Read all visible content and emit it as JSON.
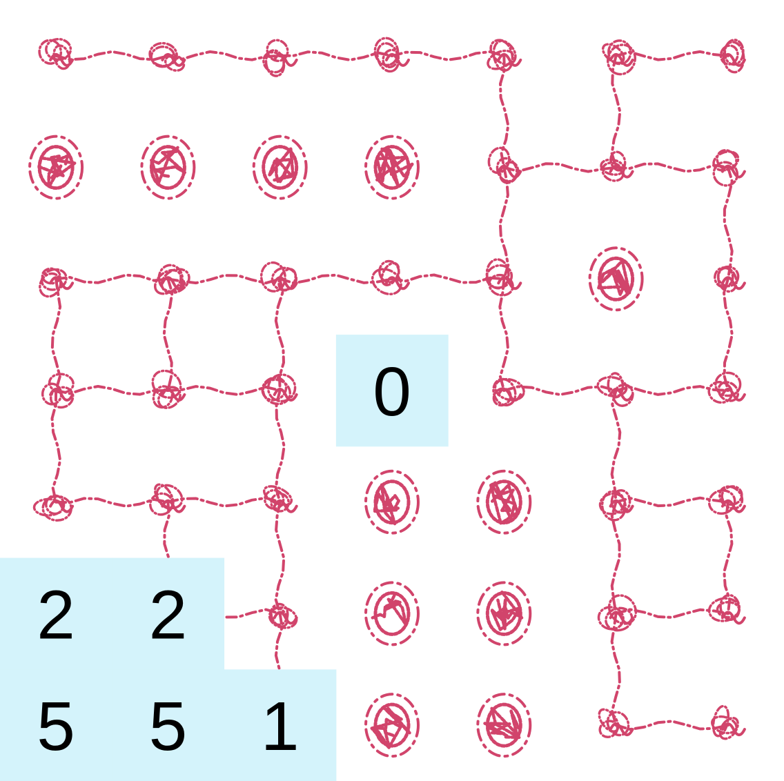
{
  "palette": {
    "background": "#ffffff",
    "doodle": "#d1446b",
    "highlight": "#d4f3fb",
    "digit": "#000000"
  },
  "board": {
    "rows": 7,
    "cols": 7,
    "clues": [
      {
        "row": 3,
        "col": 3,
        "value": "0"
      },
      {
        "row": 5,
        "col": 0,
        "value": "2"
      },
      {
        "row": 5,
        "col": 1,
        "value": "2"
      },
      {
        "row": 6,
        "col": 0,
        "value": "5"
      },
      {
        "row": 6,
        "col": 1,
        "value": "5"
      },
      {
        "row": 6,
        "col": 2,
        "value": "1"
      }
    ],
    "blobs": [
      {
        "row": 1,
        "col": 0
      },
      {
        "row": 1,
        "col": 1
      },
      {
        "row": 1,
        "col": 2
      },
      {
        "row": 1,
        "col": 3
      },
      {
        "row": 2,
        "col": 5
      },
      {
        "row": 4,
        "col": 3
      },
      {
        "row": 4,
        "col": 4
      },
      {
        "row": 5,
        "col": 3
      },
      {
        "row": 5,
        "col": 4
      },
      {
        "row": 6,
        "col": 3
      },
      {
        "row": 6,
        "col": 4
      }
    ],
    "nodes": [
      {
        "row": 0,
        "col": 0
      },
      {
        "row": 0,
        "col": 1
      },
      {
        "row": 0,
        "col": 2
      },
      {
        "row": 0,
        "col": 3
      },
      {
        "row": 0,
        "col": 4
      },
      {
        "row": 0,
        "col": 5
      },
      {
        "row": 0,
        "col": 6
      },
      {
        "row": 1,
        "col": 4
      },
      {
        "row": 1,
        "col": 5
      },
      {
        "row": 1,
        "col": 6
      },
      {
        "row": 2,
        "col": 0
      },
      {
        "row": 2,
        "col": 1
      },
      {
        "row": 2,
        "col": 2
      },
      {
        "row": 2,
        "col": 3
      },
      {
        "row": 2,
        "col": 4
      },
      {
        "row": 2,
        "col": 6
      },
      {
        "row": 3,
        "col": 0
      },
      {
        "row": 3,
        "col": 1
      },
      {
        "row": 3,
        "col": 2
      },
      {
        "row": 3,
        "col": 4
      },
      {
        "row": 3,
        "col": 5
      },
      {
        "row": 3,
        "col": 6
      },
      {
        "row": 4,
        "col": 0
      },
      {
        "row": 4,
        "col": 1
      },
      {
        "row": 4,
        "col": 2
      },
      {
        "row": 4,
        "col": 5
      },
      {
        "row": 4,
        "col": 6
      },
      {
        "row": 5,
        "col": 2
      },
      {
        "row": 5,
        "col": 5
      },
      {
        "row": 5,
        "col": 6
      },
      {
        "row": 6,
        "col": 5
      },
      {
        "row": 6,
        "col": 6
      }
    ],
    "links": [
      {
        "from": [
          0,
          0
        ],
        "to": [
          0,
          1
        ]
      },
      {
        "from": [
          0,
          1
        ],
        "to": [
          0,
          2
        ]
      },
      {
        "from": [
          0,
          2
        ],
        "to": [
          0,
          3
        ]
      },
      {
        "from": [
          0,
          3
        ],
        "to": [
          0,
          4
        ]
      },
      {
        "from": [
          0,
          5
        ],
        "to": [
          0,
          6
        ]
      },
      {
        "from": [
          0,
          4
        ],
        "to": [
          1,
          4
        ]
      },
      {
        "from": [
          0,
          5
        ],
        "to": [
          1,
          5
        ]
      },
      {
        "from": [
          1,
          4
        ],
        "to": [
          1,
          5
        ]
      },
      {
        "from": [
          1,
          5
        ],
        "to": [
          1,
          6
        ]
      },
      {
        "from": [
          1,
          4
        ],
        "to": [
          2,
          4
        ]
      },
      {
        "from": [
          1,
          6
        ],
        "to": [
          2,
          6
        ]
      },
      {
        "from": [
          2,
          0
        ],
        "to": [
          2,
          1
        ]
      },
      {
        "from": [
          2,
          1
        ],
        "to": [
          2,
          2
        ]
      },
      {
        "from": [
          2,
          2
        ],
        "to": [
          2,
          3
        ]
      },
      {
        "from": [
          2,
          3
        ],
        "to": [
          2,
          4
        ]
      },
      {
        "from": [
          2,
          0
        ],
        "to": [
          3,
          0
        ]
      },
      {
        "from": [
          2,
          1
        ],
        "to": [
          3,
          1
        ]
      },
      {
        "from": [
          2,
          2
        ],
        "to": [
          3,
          2
        ]
      },
      {
        "from": [
          2,
          4
        ],
        "to": [
          3,
          4
        ]
      },
      {
        "from": [
          2,
          6
        ],
        "to": [
          3,
          6
        ]
      },
      {
        "from": [
          3,
          0
        ],
        "to": [
          3,
          1
        ]
      },
      {
        "from": [
          3,
          1
        ],
        "to": [
          3,
          2
        ]
      },
      {
        "from": [
          3,
          4
        ],
        "to": [
          3,
          5
        ]
      },
      {
        "from": [
          3,
          5
        ],
        "to": [
          3,
          6
        ]
      },
      {
        "from": [
          3,
          0
        ],
        "to": [
          4,
          0
        ]
      },
      {
        "from": [
          3,
          2
        ],
        "to": [
          4,
          2
        ]
      },
      {
        "from": [
          3,
          5
        ],
        "to": [
          4,
          5
        ]
      },
      {
        "from": [
          4,
          0
        ],
        "to": [
          4,
          1
        ]
      },
      {
        "from": [
          4,
          1
        ],
        "to": [
          4,
          2
        ]
      },
      {
        "from": [
          4,
          5
        ],
        "to": [
          4,
          6
        ]
      },
      {
        "from": [
          4,
          1
        ],
        "to": [
          5,
          1
        ]
      },
      {
        "from": [
          4,
          2
        ],
        "to": [
          5,
          2
        ]
      },
      {
        "from": [
          4,
          5
        ],
        "to": [
          5,
          5
        ]
      },
      {
        "from": [
          4,
          6
        ],
        "to": [
          5,
          6
        ]
      },
      {
        "from": [
          5,
          1
        ],
        "to": [
          5,
          2
        ]
      },
      {
        "from": [
          5,
          5
        ],
        "to": [
          5,
          6
        ]
      },
      {
        "from": [
          5,
          2
        ],
        "to": [
          6,
          2
        ]
      },
      {
        "from": [
          5,
          5
        ],
        "to": [
          6,
          5
        ]
      },
      {
        "from": [
          6,
          5
        ],
        "to": [
          6,
          6
        ]
      }
    ]
  }
}
